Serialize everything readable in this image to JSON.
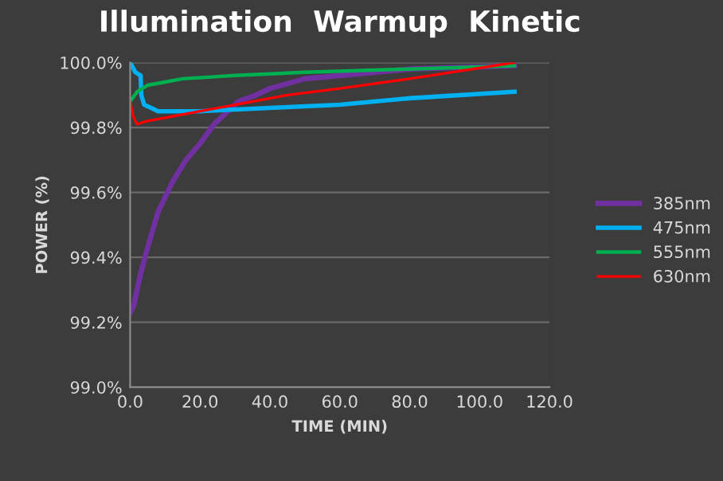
{
  "chart_data": {
    "type": "line",
    "title": "Illumination  Warmup  Kinetic",
    "xlabel": "TIME (MIN)",
    "ylabel": "POWER (%)",
    "xlim": [
      0,
      120
    ],
    "xticks": [
      {
        "value": 0,
        "label": "0.0"
      },
      {
        "value": 20,
        "label": "20.0"
      },
      {
        "value": 40,
        "label": "40.0"
      },
      {
        "value": 60,
        "label": "60.0"
      },
      {
        "value": 80,
        "label": "80.0"
      },
      {
        "value": 100,
        "label": "100.0"
      },
      {
        "value": 120,
        "label": "120.0"
      }
    ],
    "ylim": [
      99.0,
      100.0
    ],
    "yticks": [
      {
        "value": 99.0,
        "label": "99.0%"
      },
      {
        "value": 99.2,
        "label": "99.2%"
      },
      {
        "value": 99.4,
        "label": "99.4%"
      },
      {
        "value": 99.6,
        "label": "99.6%"
      },
      {
        "value": 99.8,
        "label": "99.8%"
      },
      {
        "value": 100.0,
        "label": "100.0%"
      }
    ],
    "grid": "y",
    "legend": "right",
    "marker": "none",
    "line_style": "solid",
    "series": [
      {
        "name": "385nm",
        "color": "#7030a0",
        "x": [
          0,
          1,
          3,
          5,
          8,
          12,
          16,
          20,
          24,
          28,
          31,
          36,
          40,
          50,
          60,
          80,
          110
        ],
        "values": [
          99.23,
          99.25,
          99.35,
          99.43,
          99.54,
          99.63,
          99.7,
          99.75,
          99.81,
          99.85,
          99.88,
          99.9,
          99.92,
          99.95,
          99.96,
          99.98,
          99.99
        ]
      },
      {
        "name": "475nm",
        "color": "#00b0f0",
        "x": [
          0,
          1,
          1.5,
          3,
          3.2,
          4,
          6,
          8,
          10,
          20,
          40,
          60,
          80,
          110
        ],
        "values": [
          100.0,
          99.98,
          99.97,
          99.96,
          99.9,
          99.87,
          99.86,
          99.85,
          99.85,
          99.85,
          99.86,
          99.87,
          99.89,
          99.91
        ]
      },
      {
        "name": "555nm",
        "color": "#00b050",
        "x": [
          0,
          2,
          5,
          10,
          15,
          30,
          50,
          80,
          110
        ],
        "values": [
          99.88,
          99.91,
          99.93,
          99.94,
          99.95,
          99.96,
          99.97,
          99.98,
          99.99
        ]
      },
      {
        "name": "630nm",
        "color": "#ff0000",
        "x": [
          0,
          1,
          2,
          5,
          10,
          20,
          30,
          45,
          60,
          80,
          110
        ],
        "values": [
          99.88,
          99.83,
          99.81,
          99.82,
          99.83,
          99.85,
          99.87,
          99.9,
          99.92,
          99.95,
          100.0
        ]
      }
    ]
  }
}
